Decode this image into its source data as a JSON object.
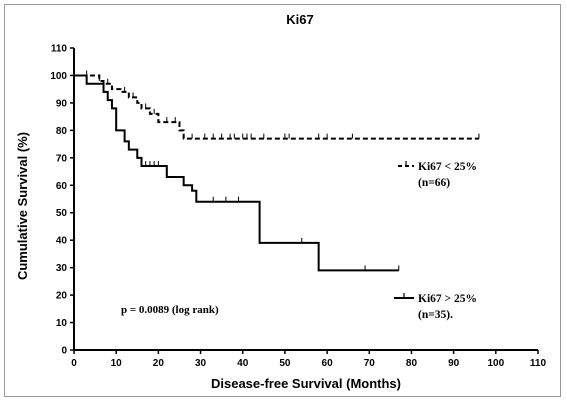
{
  "chart_data": {
    "type": "line",
    "title": "Ki67",
    "xlabel": "Disease-free Survival (Months)",
    "ylabel": "Cumulative Survival (%)",
    "xlim": [
      0,
      110
    ],
    "ylim": [
      0,
      110
    ],
    "xticks": [
      0,
      10,
      20,
      30,
      40,
      50,
      60,
      70,
      80,
      90,
      100,
      110
    ],
    "yticks": [
      0,
      10,
      20,
      30,
      40,
      50,
      60,
      70,
      80,
      90,
      100,
      110
    ],
    "grid": false,
    "series": [
      {
        "name": "Ki67 < 25%",
        "n_label": "(n=66)",
        "style": "dashed",
        "steps": [
          [
            0,
            100
          ],
          [
            5,
            100
          ],
          [
            6,
            98
          ],
          [
            7,
            97
          ],
          [
            9,
            95
          ],
          [
            11,
            94
          ],
          [
            13,
            92
          ],
          [
            15,
            90
          ],
          [
            16,
            88
          ],
          [
            18,
            86
          ],
          [
            20,
            83
          ],
          [
            25,
            83
          ],
          [
            25,
            80
          ],
          [
            26,
            77
          ],
          [
            96,
            77
          ]
        ],
        "censored": [
          [
            3,
            100
          ],
          [
            6,
            98
          ],
          [
            8,
            97
          ],
          [
            12,
            94
          ],
          [
            14,
            92
          ],
          [
            17,
            88
          ],
          [
            19,
            86
          ],
          [
            22,
            83
          ],
          [
            24,
            83
          ],
          [
            28,
            77
          ],
          [
            31,
            77
          ],
          [
            33,
            77
          ],
          [
            35,
            77
          ],
          [
            37,
            77
          ],
          [
            38,
            77
          ],
          [
            40,
            77
          ],
          [
            41,
            77
          ],
          [
            42,
            77
          ],
          [
            45,
            77
          ],
          [
            50,
            77
          ],
          [
            51,
            77
          ],
          [
            58,
            77
          ],
          [
            60,
            77
          ],
          [
            66,
            77
          ],
          [
            96,
            77
          ]
        ]
      },
      {
        "name": "Ki67 > 25%",
        "n_label": "(n=35).",
        "style": "solid",
        "steps": [
          [
            0,
            100
          ],
          [
            3,
            100
          ],
          [
            3,
            97
          ],
          [
            7,
            97
          ],
          [
            7,
            94
          ],
          [
            8,
            91
          ],
          [
            9,
            88
          ],
          [
            10,
            85
          ],
          [
            10,
            80
          ],
          [
            12,
            76
          ],
          [
            13,
            73
          ],
          [
            15,
            70
          ],
          [
            16,
            67
          ],
          [
            22,
            67
          ],
          [
            22,
            63
          ],
          [
            26,
            63
          ],
          [
            26,
            60
          ],
          [
            28,
            58
          ],
          [
            29,
            54
          ],
          [
            44,
            54
          ],
          [
            44,
            39
          ],
          [
            58,
            39
          ],
          [
            58,
            29
          ],
          [
            77,
            29
          ]
        ],
        "censored": [
          [
            17,
            67
          ],
          [
            18,
            67
          ],
          [
            19,
            67
          ],
          [
            20,
            67
          ],
          [
            33,
            54
          ],
          [
            36,
            54
          ],
          [
            39,
            54
          ],
          [
            54,
            39
          ],
          [
            69,
            29
          ],
          [
            77,
            29
          ]
        ]
      }
    ],
    "annotations": [
      "p = 0.0089 (log rank)"
    ]
  }
}
